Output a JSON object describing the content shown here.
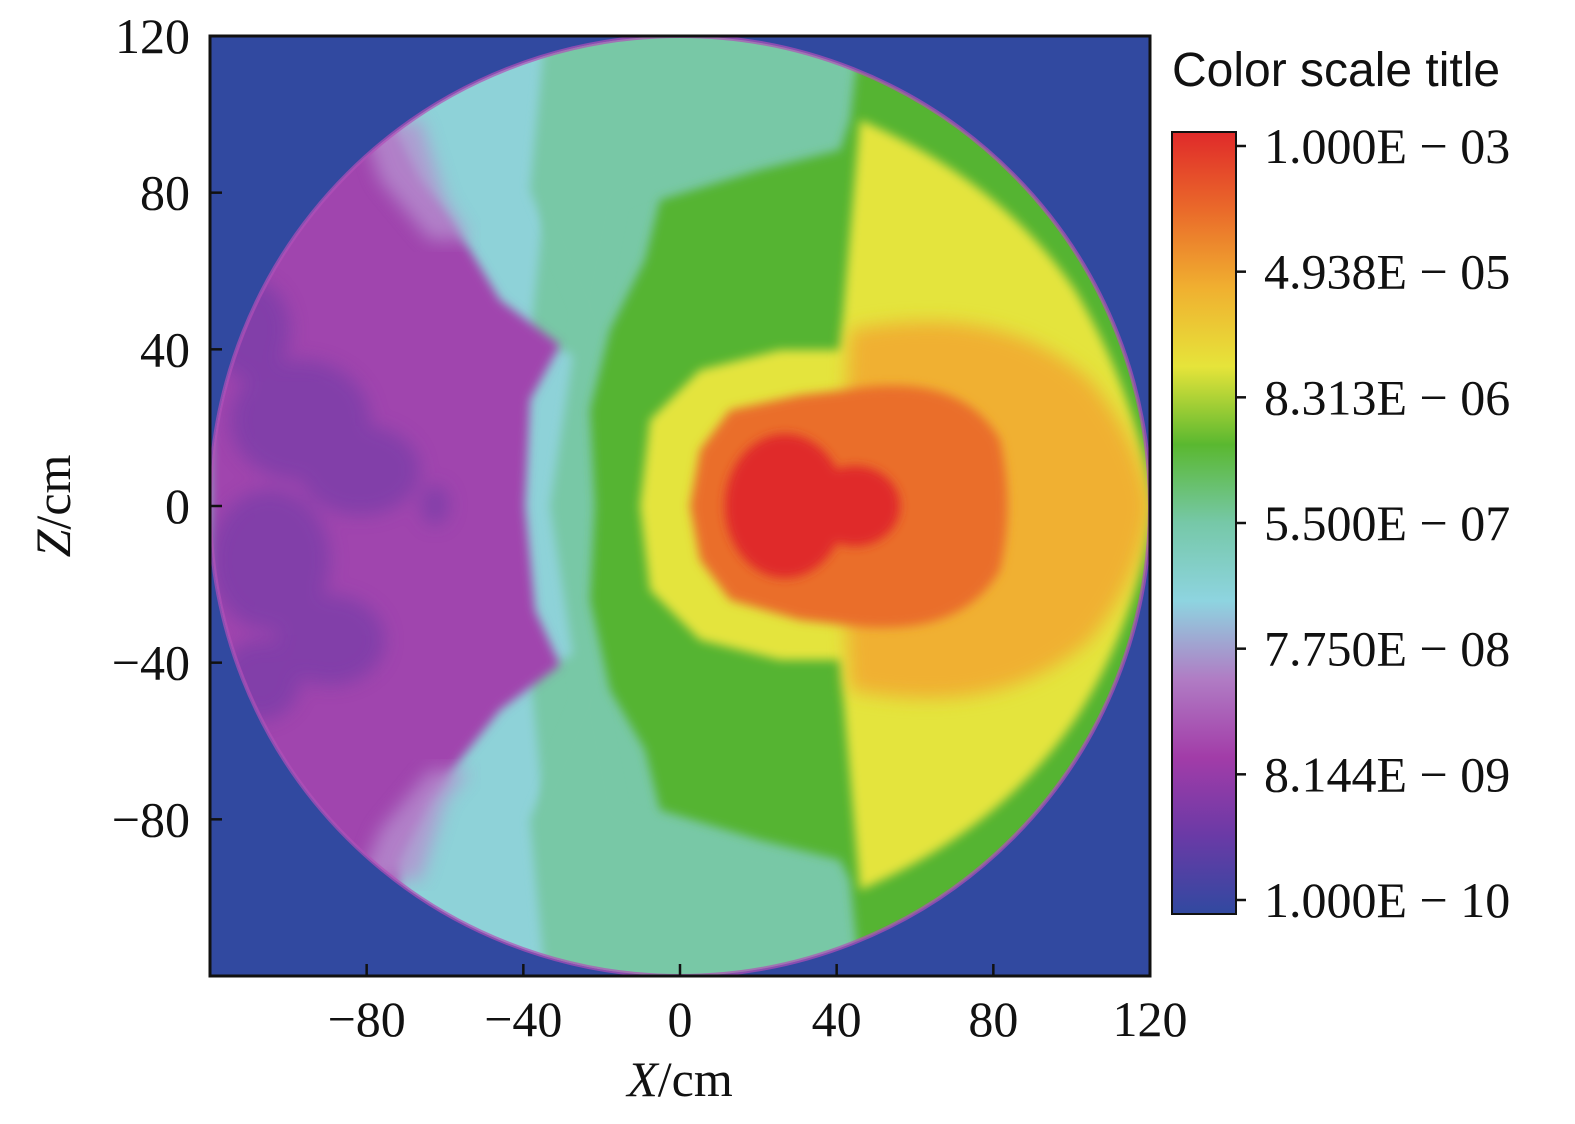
{
  "chart_data": {
    "type": "heatmap",
    "title": "",
    "xlabel_var": "X",
    "xlabel_unit": "/cm",
    "ylabel_var": "Z",
    "ylabel_unit": "/cm",
    "xlim": [
      -120,
      120
    ],
    "ylim": [
      -120,
      120
    ],
    "x_ticks": [
      -80,
      -40,
      0,
      40,
      80,
      120
    ],
    "y_ticks": [
      120,
      80,
      40,
      0,
      -40,
      -80
    ],
    "x_tick_labels": [
      "−80",
      "−40",
      "0",
      "40",
      "80",
      "120"
    ],
    "y_tick_labels": [
      "120",
      "80",
      "40",
      "0",
      "−40",
      "−80"
    ],
    "grid": false,
    "domain": {
      "shape": "circle",
      "center": [
        0,
        0
      ],
      "radius": 120
    },
    "background_color": "#3149a0",
    "field_description_values": {
      "peak_location": [
        30,
        0
      ],
      "peak_value": "1.000E-03"
    },
    "colorbar": {
      "title": "Color scale title",
      "scale": "log",
      "min": "1.000E-10",
      "max": "1.000E-03",
      "labels": [
        "1.000E − 03",
        "4.938E − 05",
        "8.313E − 06",
        "5.500E − 07",
        "7.750E − 08",
        "8.144E − 09",
        "1.000E − 10"
      ],
      "colors": [
        "#e02a2a",
        "#ea6a2a",
        "#f0b030",
        "#e6e43a",
        "#5ab830",
        "#76c8a8",
        "#8ed4e0",
        "#b07cc4",
        "#a23ca8",
        "#6a3aa6",
        "#3149a0"
      ]
    },
    "regions": [
      {
        "name": "background",
        "color": "#3149a0"
      },
      {
        "name": "purple-zone",
        "color": "#a044ae"
      },
      {
        "name": "cyan-zone",
        "color": "#8ed2d8"
      },
      {
        "name": "teal-zone",
        "color": "#78c8a6"
      },
      {
        "name": "green-zone",
        "color": "#55b432"
      },
      {
        "name": "yellow-zone",
        "color": "#e4e43e"
      },
      {
        "name": "orange-zone",
        "color": "#f0b030"
      },
      {
        "name": "red-orange-zone",
        "color": "#ea6e2a"
      },
      {
        "name": "red-core",
        "color": "#e02a2a"
      }
    ]
  }
}
